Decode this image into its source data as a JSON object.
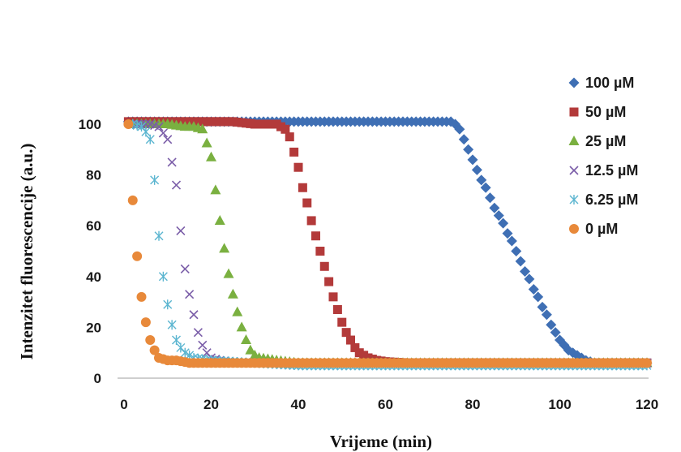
{
  "chart_data": {
    "type": "scatter",
    "xlabel": "Vrijeme (min)",
    "ylabel": "Intenzitet fluorescencije (a.u.)",
    "xlim": [
      0,
      120
    ],
    "ylim": [
      0,
      100
    ],
    "xticks": [
      0,
      20,
      40,
      60,
      80,
      100,
      120
    ],
    "yticks": [
      0,
      20,
      40,
      60,
      80,
      100
    ],
    "grid": false,
    "legend_position": "right",
    "series": [
      {
        "name": "100 µM",
        "marker": "diamond",
        "color": "#3f6fb4",
        "points": [
          [
            1,
            101
          ],
          [
            5,
            101
          ],
          [
            10,
            101
          ],
          [
            15,
            101
          ],
          [
            20,
            101
          ],
          [
            25,
            101
          ],
          [
            30,
            101
          ],
          [
            35,
            101
          ],
          [
            40,
            101
          ],
          [
            45,
            101
          ],
          [
            50,
            101
          ],
          [
            55,
            101
          ],
          [
            60,
            101
          ],
          [
            65,
            101
          ],
          [
            70,
            101
          ],
          [
            75,
            101
          ],
          [
            76,
            100
          ],
          [
            77,
            98
          ],
          [
            78,
            94
          ],
          [
            79,
            90
          ],
          [
            80,
            86
          ],
          [
            81,
            82
          ],
          [
            82,
            78
          ],
          [
            83,
            75
          ],
          [
            84,
            71
          ],
          [
            85,
            67
          ],
          [
            86,
            64
          ],
          [
            87,
            61
          ],
          [
            88,
            57
          ],
          [
            89,
            54
          ],
          [
            90,
            50
          ],
          [
            91,
            46
          ],
          [
            92,
            42
          ],
          [
            93,
            39
          ],
          [
            94,
            35
          ],
          [
            95,
            32
          ],
          [
            96,
            28
          ],
          [
            97,
            25
          ],
          [
            98,
            21
          ],
          [
            99,
            18
          ],
          [
            100,
            15
          ],
          [
            101,
            13
          ],
          [
            102,
            11
          ],
          [
            103,
            10
          ],
          [
            104,
            9
          ],
          [
            105,
            8
          ],
          [
            106,
            7
          ],
          [
            107,
            6.5
          ],
          [
            108,
            6
          ],
          [
            110,
            6
          ],
          [
            115,
            6
          ],
          [
            120,
            6
          ]
        ]
      },
      {
        "name": "50 µM",
        "marker": "square",
        "color": "#b33a3a",
        "points": [
          [
            1,
            101
          ],
          [
            5,
            101
          ],
          [
            10,
            101
          ],
          [
            15,
            101
          ],
          [
            20,
            101
          ],
          [
            25,
            101
          ],
          [
            30,
            100
          ],
          [
            35,
            100
          ],
          [
            36,
            99
          ],
          [
            37,
            98
          ],
          [
            38,
            95
          ],
          [
            39,
            89
          ],
          [
            40,
            83
          ],
          [
            41,
            75
          ],
          [
            42,
            69
          ],
          [
            43,
            62
          ],
          [
            44,
            56
          ],
          [
            45,
            50
          ],
          [
            46,
            44
          ],
          [
            47,
            38
          ],
          [
            48,
            32
          ],
          [
            49,
            27
          ],
          [
            50,
            22
          ],
          [
            51,
            18
          ],
          [
            52,
            15
          ],
          [
            53,
            12
          ],
          [
            54,
            10
          ],
          [
            55,
            9
          ],
          [
            56,
            8
          ],
          [
            58,
            7
          ],
          [
            60,
            6.5
          ],
          [
            65,
            6
          ],
          [
            70,
            6
          ],
          [
            80,
            6
          ],
          [
            90,
            6
          ],
          [
            100,
            6
          ],
          [
            110,
            6
          ],
          [
            120,
            6
          ]
        ]
      },
      {
        "name": "25 µM",
        "marker": "triangle",
        "color": "#7ab040",
        "points": [
          [
            2,
            100
          ],
          [
            6,
            100
          ],
          [
            10,
            100
          ],
          [
            14,
            99
          ],
          [
            16,
            99
          ],
          [
            18,
            98
          ],
          [
            20,
            87
          ],
          [
            21,
            74
          ],
          [
            22,
            62
          ],
          [
            23,
            51
          ],
          [
            24,
            41
          ],
          [
            25,
            33
          ],
          [
            26,
            26
          ],
          [
            27,
            20
          ],
          [
            28,
            15
          ],
          [
            29,
            11
          ],
          [
            30,
            9
          ],
          [
            31,
            8
          ],
          [
            35,
            7
          ],
          [
            40,
            6
          ],
          [
            50,
            6
          ],
          [
            60,
            6
          ],
          [
            80,
            6
          ],
          [
            100,
            6
          ],
          [
            120,
            6
          ]
        ]
      },
      {
        "name": "12.5 µM",
        "marker": "x",
        "color": "#7a5da8",
        "points": [
          [
            2,
            100
          ],
          [
            4,
            100
          ],
          [
            6,
            100
          ],
          [
            8,
            99
          ],
          [
            10,
            94
          ],
          [
            12,
            76
          ],
          [
            13,
            58
          ],
          [
            14,
            43
          ],
          [
            15,
            33
          ],
          [
            16,
            25
          ],
          [
            17,
            18
          ],
          [
            18,
            13
          ],
          [
            19,
            10
          ],
          [
            20,
            8
          ],
          [
            22,
            7
          ],
          [
            26,
            6
          ],
          [
            30,
            6
          ],
          [
            40,
            6
          ],
          [
            60,
            6
          ],
          [
            80,
            6
          ],
          [
            100,
            6
          ],
          [
            120,
            6
          ]
        ]
      },
      {
        "name": "6.25 µM",
        "marker": "asterisk",
        "color": "#5bb5d0",
        "points": [
          [
            2,
            100
          ],
          [
            4,
            99
          ],
          [
            5,
            97
          ],
          [
            6,
            94
          ],
          [
            7,
            78
          ],
          [
            8,
            56
          ],
          [
            9,
            40
          ],
          [
            10,
            29
          ],
          [
            11,
            21
          ],
          [
            12,
            15
          ],
          [
            13,
            12
          ],
          [
            14,
            10
          ],
          [
            16,
            8
          ],
          [
            20,
            7
          ],
          [
            30,
            6
          ],
          [
            40,
            5
          ],
          [
            60,
            5
          ],
          [
            80,
            5
          ],
          [
            100,
            5
          ],
          [
            120,
            5
          ]
        ]
      },
      {
        "name": "0 µM",
        "marker": "circle",
        "color": "#e8893a",
        "points": [
          [
            1,
            100
          ],
          [
            2,
            70
          ],
          [
            3,
            48
          ],
          [
            4,
            32
          ],
          [
            5,
            22
          ],
          [
            6,
            15
          ],
          [
            7,
            11
          ],
          [
            8,
            8
          ],
          [
            10,
            7
          ],
          [
            12,
            7
          ],
          [
            15,
            6
          ],
          [
            20,
            6
          ],
          [
            30,
            6
          ],
          [
            40,
            6
          ],
          [
            50,
            6
          ],
          [
            60,
            6
          ],
          [
            70,
            6
          ],
          [
            80,
            6
          ],
          [
            90,
            6
          ],
          [
            100,
            6
          ],
          [
            110,
            6
          ],
          [
            120,
            6
          ]
        ]
      }
    ]
  }
}
